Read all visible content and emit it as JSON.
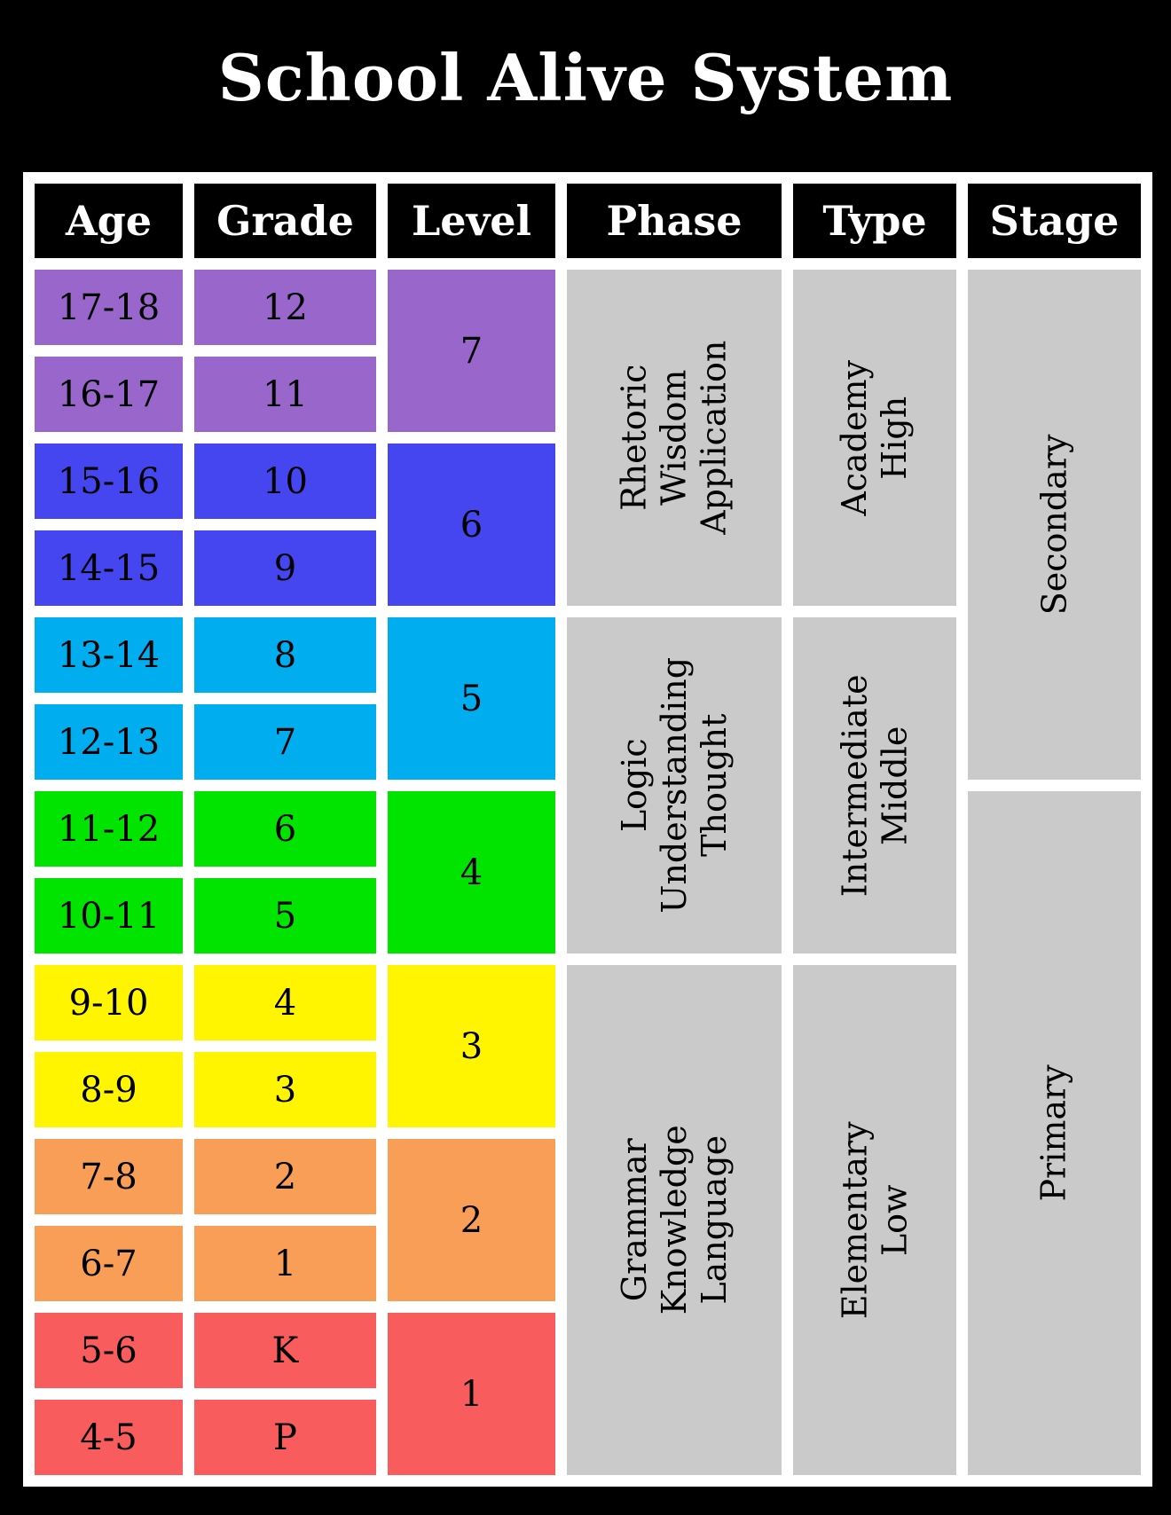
{
  "title": "School Alive System",
  "table": {
    "headers": [
      {
        "label": "Age"
      },
      {
        "label": "Grade"
      },
      {
        "label": "Level"
      },
      {
        "label": "Phase"
      },
      {
        "label": "Type"
      },
      {
        "label": "Stage"
      }
    ],
    "age_grade_rows": [
      {
        "age": "17-18",
        "grade": "12",
        "band": "purple"
      },
      {
        "age": "16-17",
        "grade": "11",
        "band": "purple"
      },
      {
        "age": "15-16",
        "grade": "10",
        "band": "blue"
      },
      {
        "age": "14-15",
        "grade": "9",
        "band": "blue"
      },
      {
        "age": "13-14",
        "grade": "8",
        "band": "cyan"
      },
      {
        "age": "12-13",
        "grade": "7",
        "band": "cyan"
      },
      {
        "age": "11-12",
        "grade": "6",
        "band": "green"
      },
      {
        "age": "10-11",
        "grade": "5",
        "band": "green"
      },
      {
        "age": "9-10",
        "grade": "4",
        "band": "yellow"
      },
      {
        "age": "8-9",
        "grade": "3",
        "band": "yellow"
      },
      {
        "age": "7-8",
        "grade": "2",
        "band": "orange"
      },
      {
        "age": "6-7",
        "grade": "1",
        "band": "orange"
      },
      {
        "age": "5-6",
        "grade": "K",
        "band": "red"
      },
      {
        "age": "4-5",
        "grade": "P",
        "band": "red"
      }
    ],
    "levels": [
      {
        "label": "7",
        "band": "purple"
      },
      {
        "label": "6",
        "band": "blue"
      },
      {
        "label": "5",
        "band": "cyan"
      },
      {
        "label": "4",
        "band": "green"
      },
      {
        "label": "3",
        "band": "yellow"
      },
      {
        "label": "2",
        "band": "orange"
      },
      {
        "label": "1",
        "band": "red"
      }
    ],
    "phases": [
      {
        "label": "Rhetoric\nWisdom\nApplication"
      },
      {
        "label": "Logic\nUnderstanding\nThought"
      },
      {
        "label": "Grammar\nKnowledge\nLanguage"
      }
    ],
    "types": [
      {
        "label": "Academy\nHigh"
      },
      {
        "label": "Intermediate\nMiddle"
      },
      {
        "label": "Elementary\nLow"
      }
    ],
    "stages": [
      {
        "label": "Secondary"
      },
      {
        "label": "Primary"
      }
    ]
  },
  "colors": {
    "page_bg": "#000000",
    "table_frame": "#FFFFFF",
    "header_bg": "#000000",
    "header_text": "#FFFFFF",
    "title_text": "#FFFFFF",
    "body_text": "#000000",
    "gray": "#CACACA",
    "purple": "#9966CC",
    "blue": "#4646F0",
    "cyan": "#00AEEF",
    "green": "#00E400",
    "yellow": "#FFF500",
    "orange": "#F99E57",
    "red": "#F85C5C"
  }
}
